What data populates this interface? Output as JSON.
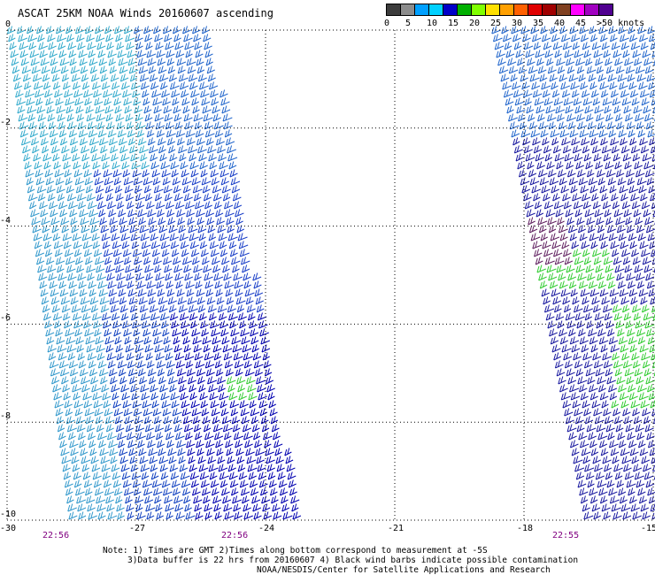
{
  "title": "ASCAT 25KM NOAA Winds 20160607 ascending",
  "legend": {
    "colors": [
      "#3c3c3c",
      "#8c8c8c",
      "#00a0ff",
      "#00d0ff",
      "#0000c8",
      "#00b000",
      "#80ff00",
      "#ffe000",
      "#ffa000",
      "#ff6000",
      "#e00000",
      "#a00000",
      "#804020",
      "#ff00ff",
      "#a000c0",
      "#500090"
    ],
    "labels": [
      "0",
      "5",
      "10",
      "15",
      "20",
      "25",
      "30",
      "35",
      "40",
      "45",
      ">50 knots"
    ]
  },
  "map": {
    "lon_ticks": [
      "-30",
      "-27",
      "-24",
      "-21",
      "-18",
      "-15"
    ],
    "lat_ticks": [
      "0",
      "-2",
      "-4",
      "-6",
      "-8",
      "-10"
    ],
    "lon_range": [
      -30,
      -15
    ],
    "lat_range": [
      0,
      -10
    ],
    "grid": "dotted"
  },
  "times": [
    "22:56",
    "22:56",
    "22:55"
  ],
  "notes": [
    "Note: 1) Times are GMT 2)Times along bottom correspond to measurement at -5S",
    "3)Data buffer is 22 hrs from 20160607 4) Black wind barbs indicate possible contamination",
    "NOAA/NESDIS/Center for Satellite Applications and Research"
  ]
}
